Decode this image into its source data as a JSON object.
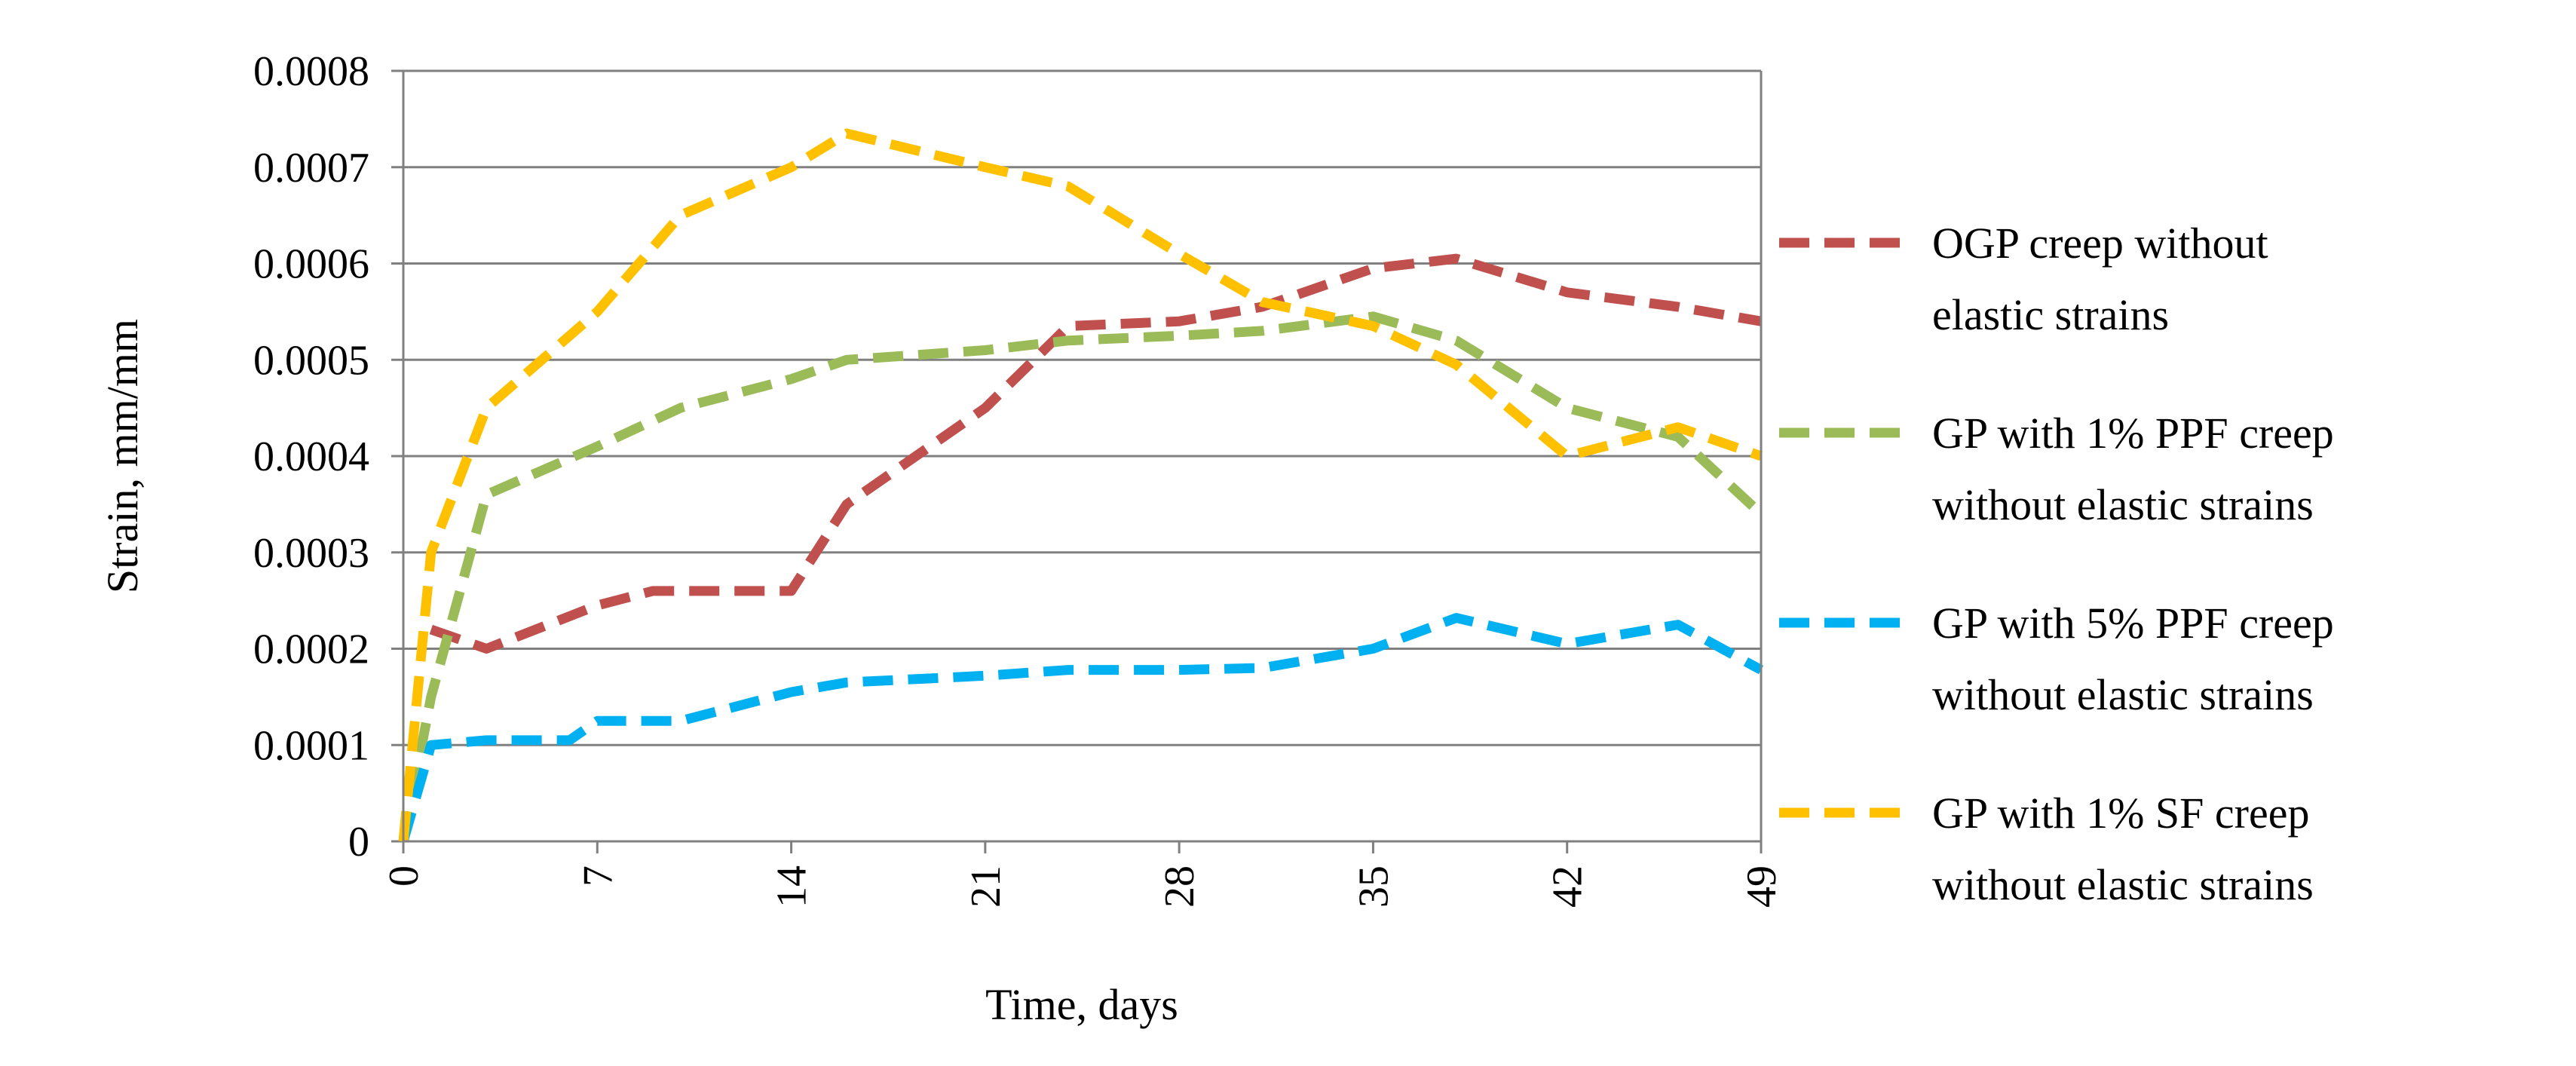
{
  "chart_data": {
    "type": "line",
    "title": "",
    "xlabel": "Time, days",
    "ylabel": "Strain, mm/mm",
    "xlim": [
      0,
      49
    ],
    "ylim": [
      0,
      0.0008
    ],
    "x_ticks": [
      "0",
      "7",
      "14",
      "21",
      "28",
      "35",
      "42",
      "49"
    ],
    "x_tick_values": [
      0,
      7,
      14,
      21,
      28,
      35,
      42,
      49
    ],
    "y_ticks": [
      "0",
      "0.0001",
      "0.0002",
      "0.0003",
      "0.0004",
      "0.0005",
      "0.0006",
      "0.0007",
      "0.0008"
    ],
    "y_tick_values": [
      0,
      0.0001,
      0.0002,
      0.0003,
      0.0004,
      0.0005,
      0.0006,
      0.0007,
      0.0008
    ],
    "grid": true,
    "legend_position": "right",
    "series": [
      {
        "name": "OGP creep without elastic strains",
        "legend_lines": [
          "OGP creep without",
          "elastic strains"
        ],
        "color": "#C0504D",
        "x": [
          1,
          3,
          7,
          9,
          14,
          16,
          21,
          24,
          28,
          31,
          35,
          38,
          42,
          46,
          49
        ],
        "y": [
          0.00022,
          0.0002,
          0.000245,
          0.00026,
          0.00026,
          0.00035,
          0.00045,
          0.000535,
          0.00054,
          0.000555,
          0.000595,
          0.000605,
          0.00057,
          0.000555,
          0.00054
        ]
      },
      {
        "name": "GP with 1% PPF creep without elastic strains",
        "legend_lines": [
          "GP with 1% PPF creep",
          "without elastic strains"
        ],
        "color": "#9BBB59",
        "x": [
          0,
          1,
          3,
          7,
          10,
          14,
          16,
          21,
          24,
          28,
          31,
          35,
          38,
          42,
          46,
          49
        ],
        "y": [
          0,
          0.00015,
          0.00036,
          0.00041,
          0.00045,
          0.00048,
          0.0005,
          0.00051,
          0.00052,
          0.000525,
          0.00053,
          0.000545,
          0.00052,
          0.00045,
          0.00042,
          0.00034
        ]
      },
      {
        "name": "GP with 5% PPF creep without elastic strains",
        "legend_lines": [
          "GP with 5% PPF creep",
          "without elastic strains"
        ],
        "color": "#00B0F0",
        "x": [
          0,
          1,
          3,
          6,
          7,
          10,
          14,
          16,
          21,
          24,
          28,
          31,
          35,
          38,
          42,
          46,
          49
        ],
        "y": [
          0,
          0.0001,
          0.000105,
          0.000105,
          0.000125,
          0.000125,
          0.000155,
          0.000165,
          0.000172,
          0.000178,
          0.000178,
          0.00018,
          0.0002,
          0.000232,
          0.000205,
          0.000225,
          0.000178
        ]
      },
      {
        "name": "GP with 1% SF creep without elastic strains",
        "legend_lines": [
          "GP with 1% SF creep",
          "without elastic strains"
        ],
        "color": "#FFC000",
        "x": [
          0,
          1,
          3,
          7,
          10,
          14,
          16,
          21,
          24,
          28,
          31,
          35,
          38,
          42,
          46,
          49
        ],
        "y": [
          0,
          0.0003,
          0.00045,
          0.00055,
          0.00065,
          0.0007,
          0.000735,
          0.0007,
          0.00068,
          0.00061,
          0.00056,
          0.000535,
          0.000495,
          0.0004,
          0.00043,
          0.0004
        ]
      }
    ]
  }
}
